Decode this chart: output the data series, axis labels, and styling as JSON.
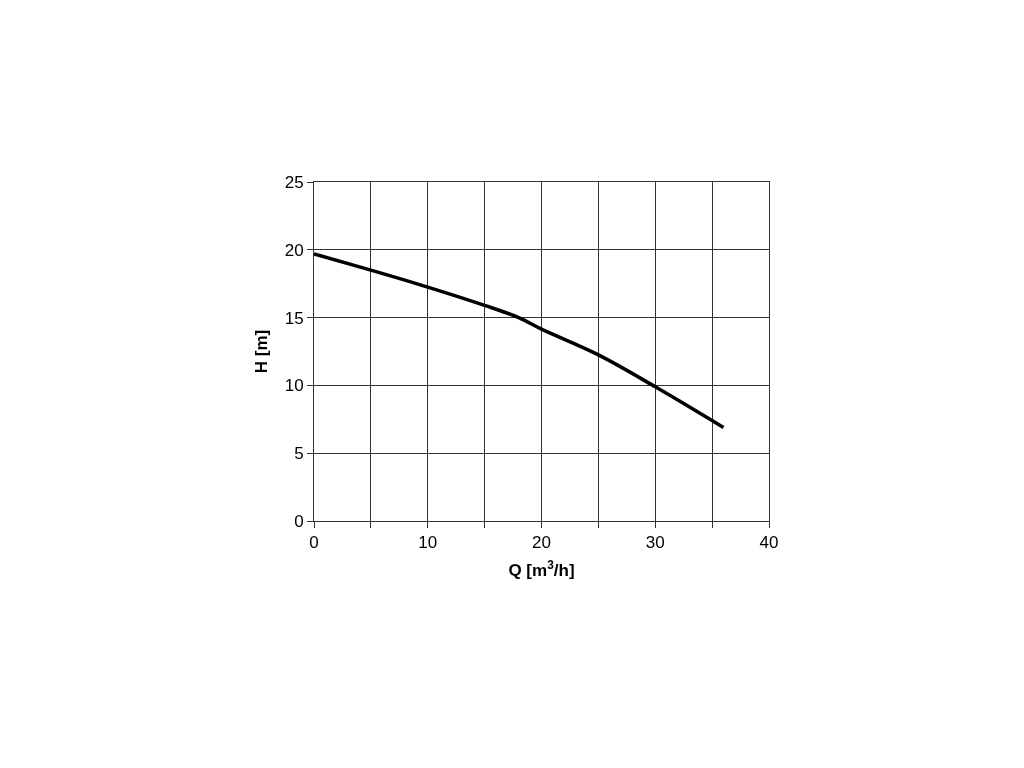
{
  "chart_data": {
    "type": "line",
    "xlabel": "Q [m$^{3}$/h]",
    "ylabel": "H [m]",
    "x": [
      0,
      5,
      10,
      15,
      18,
      20,
      25,
      30,
      36
    ],
    "series": [
      {
        "color": "#000000",
        "values": [
          19.7,
          18.5,
          17.25,
          15.9,
          15,
          14.15,
          12.25,
          9.9,
          6.9
        ]
      }
    ],
    "xlim": [
      0,
      40
    ],
    "ylim": [
      0,
      25
    ],
    "xticks": [
      0,
      {
        "value": 5,
        "label": null
      },
      10,
      {
        "value": 15,
        "label": null
      },
      20,
      {
        "value": 25,
        "label": null
      },
      30,
      {
        "value": 35,
        "label": null
      },
      40
    ],
    "yticks": [
      0,
      5,
      10,
      15,
      20,
      25
    ],
    "grid": true,
    "marker": "none",
    "line_style": "solid"
  }
}
